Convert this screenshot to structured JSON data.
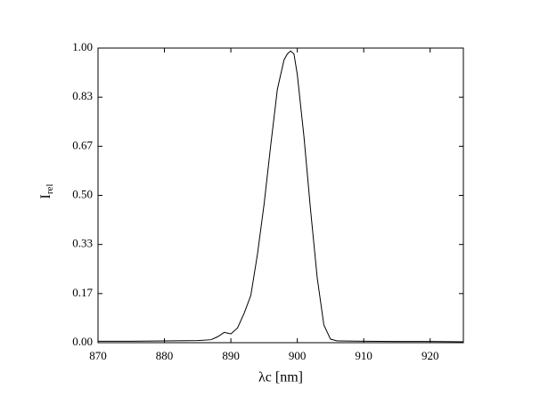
{
  "chart_data": {
    "type": "line",
    "xlabel": "λc [nm]",
    "ylabel": "I",
    "ylabel_sub": "rel",
    "color": "#000000",
    "x": [
      870,
      875,
      880,
      885,
      887,
      888,
      889,
      890,
      891,
      892,
      893,
      894,
      895,
      896,
      897,
      898,
      898.5,
      899,
      899.5,
      900,
      901,
      902,
      903,
      904,
      905,
      906,
      910,
      915,
      920,
      925
    ],
    "series": [
      {
        "values": [
          0.005,
          0.005,
          0.006,
          0.007,
          0.01,
          0.02,
          0.035,
          0.03,
          0.05,
          0.1,
          0.16,
          0.3,
          0.47,
          0.67,
          0.86,
          0.96,
          0.98,
          0.99,
          0.98,
          0.91,
          0.7,
          0.45,
          0.22,
          0.06,
          0.012,
          0.006,
          0.005,
          0.004,
          0.004,
          0.003
        ]
      }
    ],
    "xlim": [
      870,
      925
    ],
    "xticks": [
      870,
      880,
      890,
      900,
      910,
      920
    ],
    "ylim": [
      0,
      1
    ],
    "yticks": [
      {
        "value": 0,
        "label": "0.00"
      },
      {
        "value": 0.1667,
        "label": "0.17"
      },
      {
        "value": 0.3333,
        "label": "0.33"
      },
      {
        "value": 0.5,
        "label": "0.50"
      },
      {
        "value": 0.6667,
        "label": "0.67"
      },
      {
        "value": 0.8333,
        "label": "0.83"
      },
      {
        "value": 1,
        "label": "1.00"
      }
    ]
  }
}
